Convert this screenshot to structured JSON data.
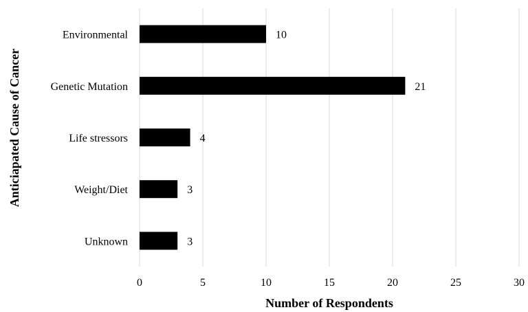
{
  "chart_data": {
    "type": "bar",
    "orientation": "horizontal",
    "categories": [
      "Environmental",
      "Genetic Mutation",
      "Life stressors",
      "Weight/Diet",
      "Unknown"
    ],
    "values": [
      10,
      21,
      4,
      3,
      3
    ],
    "data_labels": [
      "10",
      "21",
      "4",
      "3",
      "3"
    ],
    "xlabel": "Number of Respondents",
    "ylabel": "Anticiapated Cause of Cancer",
    "xlim": [
      0,
      30
    ],
    "x_ticks": [
      "0",
      "5",
      "10",
      "15",
      "20",
      "25",
      "30"
    ],
    "grid": "vertical",
    "legend": "none",
    "bar_color": "#000000"
  }
}
